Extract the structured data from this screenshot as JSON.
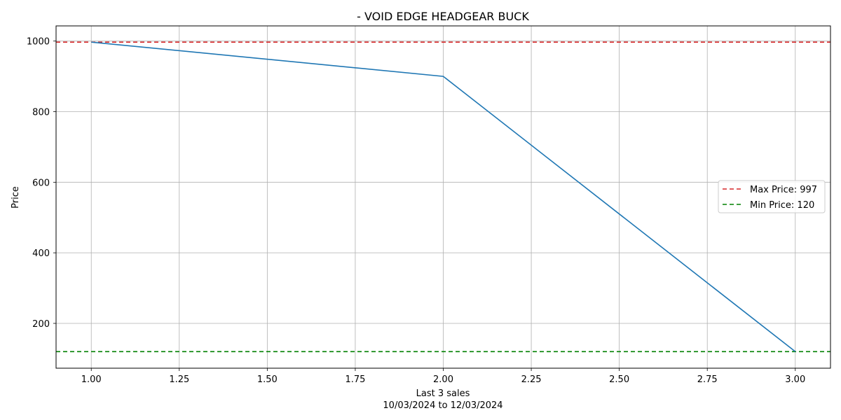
{
  "chart_data": {
    "type": "line",
    "title": "- VOID EDGE HEADGEAR BUCK",
    "xlabel": "Last 3 sales",
    "xlabel_sub": "10/03/2024 to 12/03/2024",
    "ylabel": "Price",
    "xlim": [
      0.9,
      3.1
    ],
    "ylim": [
      73,
      1043
    ],
    "xticks": [
      1.0,
      1.25,
      1.5,
      1.75,
      2.0,
      2.25,
      2.5,
      2.75,
      3.0
    ],
    "xtick_labels": [
      "1.00",
      "1.25",
      "1.50",
      "1.75",
      "2.00",
      "2.25",
      "2.50",
      "2.75",
      "3.00"
    ],
    "yticks": [
      200,
      400,
      600,
      800,
      1000
    ],
    "ytick_labels": [
      "200",
      "400",
      "600",
      "800",
      "1000"
    ],
    "grid": true,
    "legend_position": "center-right",
    "series": [
      {
        "x": [
          1,
          2,
          3
        ],
        "values": [
          997,
          900,
          120
        ],
        "color": "#1f77b4"
      }
    ],
    "reference_lines": [
      {
        "name": "Max Price: 997",
        "value": 997,
        "color": "#d62728",
        "style": "dashed"
      },
      {
        "name": "Min Price: 120",
        "value": 120,
        "color": "#008000",
        "style": "dashed"
      }
    ]
  }
}
